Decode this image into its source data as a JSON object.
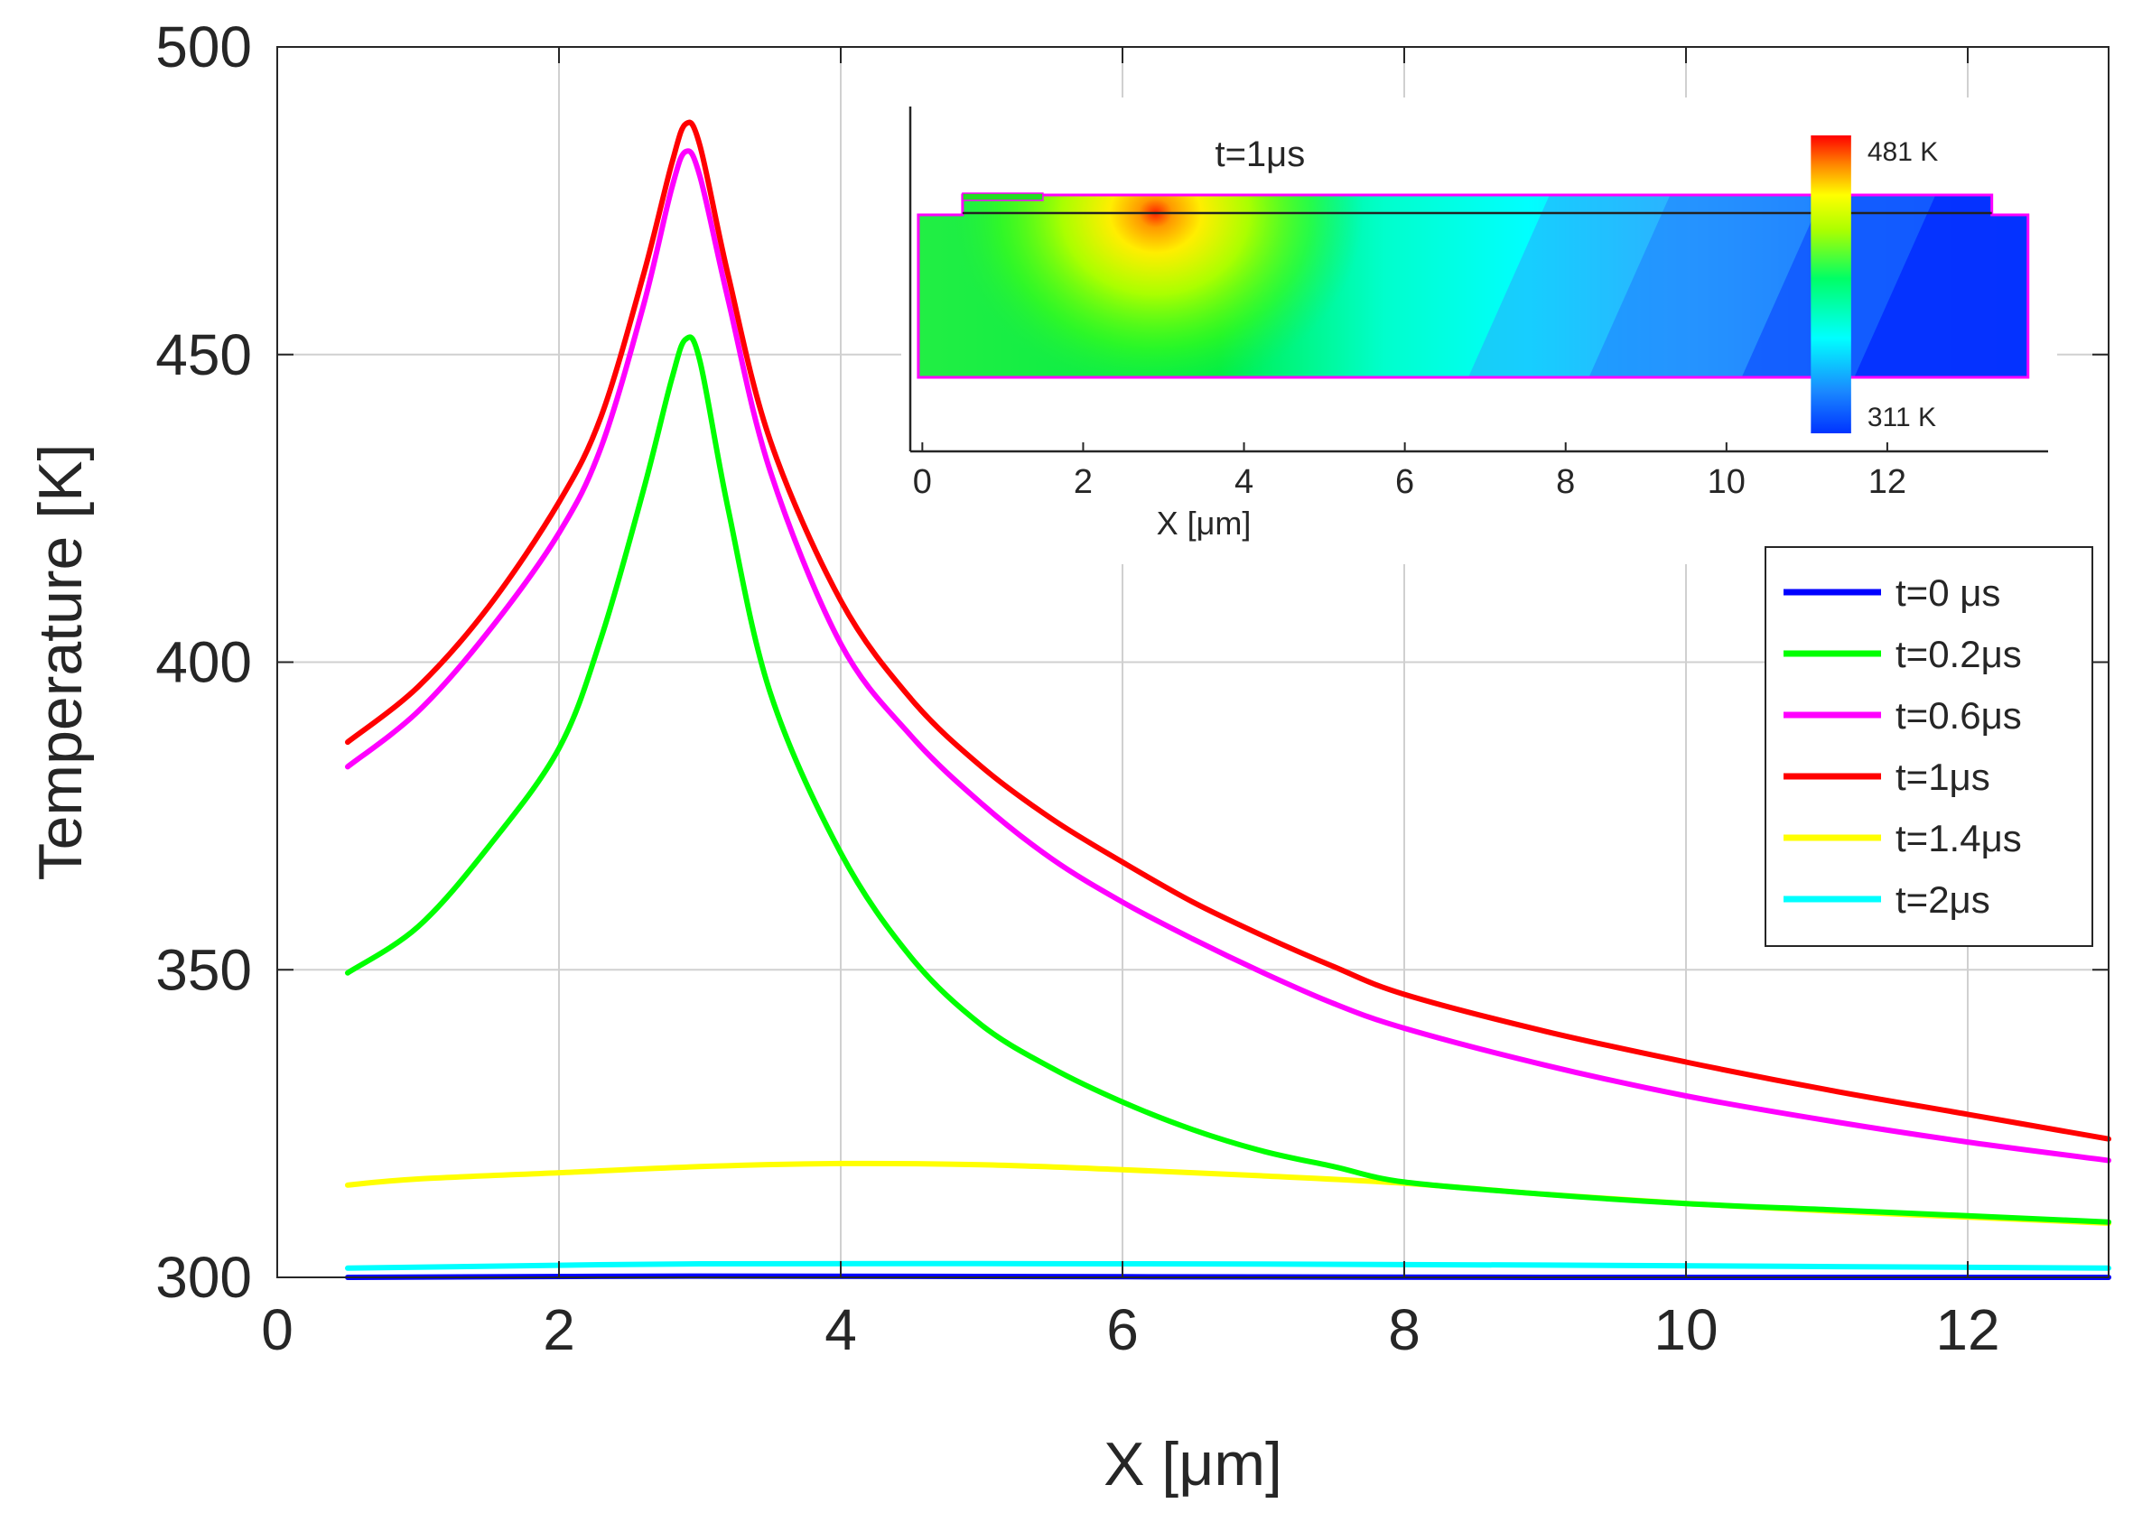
{
  "colors": {
    "t0": "#0000ff",
    "t02": "#00ff00",
    "t06": "#ff00ff",
    "t1": "#ff0000",
    "t14": "#ffff00",
    "t2": "#00ffff",
    "grid": "#d0d0d0",
    "axis": "#262626"
  },
  "chart_data": [
    {
      "type": "line",
      "xlabel": "X [μm]",
      "ylabel": "Temperature [K]",
      "xlim": [
        0,
        13
      ],
      "ylim": [
        300,
        500
      ],
      "xticks": [
        0,
        2,
        4,
        6,
        8,
        10,
        12
      ],
      "yticks": [
        300,
        350,
        400,
        450,
        500
      ],
      "xtick_labels": [
        "0",
        "2",
        "4",
        "6",
        "8",
        "10",
        "12"
      ],
      "ytick_labels": [
        "300",
        "350",
        "400",
        "450",
        "500"
      ],
      "grid": true,
      "legend_position": "right",
      "series": [
        {
          "name": "t=0 μs",
          "color_key": "t0",
          "points": [
            [
              0.5,
              300
            ],
            [
              3,
              300.2
            ],
            [
              6,
              300.1
            ],
            [
              9,
              300
            ],
            [
              13,
              300
            ]
          ]
        },
        {
          "name": "t=0.2μs",
          "color_key": "t02",
          "points": [
            [
              0.5,
              349.5
            ],
            [
              1.0,
              357
            ],
            [
              1.5,
              370
            ],
            [
              2.0,
              386
            ],
            [
              2.3,
              404
            ],
            [
              2.6,
              428
            ],
            [
              2.8,
              446
            ],
            [
              2.9,
              452.5
            ],
            [
              3.0,
              449
            ],
            [
              3.2,
              425
            ],
            [
              3.5,
              395
            ],
            [
              4.0,
              369
            ],
            [
              4.5,
              352
            ],
            [
              5.0,
              341
            ],
            [
              5.5,
              334
            ],
            [
              6.0,
              328.5
            ],
            [
              6.5,
              324
            ],
            [
              7.0,
              320.5
            ],
            [
              7.5,
              318
            ],
            [
              8.0,
              315.5
            ],
            [
              9.0,
              313.5
            ],
            [
              10.0,
              312
            ],
            [
              11.0,
              311
            ],
            [
              12.0,
              310
            ],
            [
              13.0,
              309
            ]
          ]
        },
        {
          "name": "t=0.6μs",
          "color_key": "t06",
          "points": [
            [
              0.5,
              383
            ],
            [
              1.0,
              392
            ],
            [
              1.5,
              405
            ],
            [
              2.0,
              421
            ],
            [
              2.3,
              435
            ],
            [
              2.6,
              458
            ],
            [
              2.8,
              477
            ],
            [
              2.9,
              483
            ],
            [
              3.0,
              479
            ],
            [
              3.2,
              459
            ],
            [
              3.5,
              431
            ],
            [
              4.0,
              403
            ],
            [
              4.5,
              388
            ],
            [
              5.0,
              377
            ],
            [
              5.5,
              368
            ],
            [
              6.0,
              361
            ],
            [
              6.5,
              355
            ],
            [
              7.0,
              349.5
            ],
            [
              7.5,
              344.5
            ],
            [
              8.0,
              340.5
            ],
            [
              9.0,
              334.5
            ],
            [
              10.0,
              329.5
            ],
            [
              11.0,
              325.5
            ],
            [
              12.0,
              322
            ],
            [
              13.0,
              319
            ]
          ]
        },
        {
          "name": "t=1μs",
          "color_key": "t1",
          "points": [
            [
              0.5,
              387
            ],
            [
              1.0,
              396
            ],
            [
              1.5,
              409
            ],
            [
              2.0,
              426
            ],
            [
              2.3,
              440
            ],
            [
              2.6,
              463
            ],
            [
              2.8,
              481
            ],
            [
              2.9,
              487.5
            ],
            [
              3.0,
              484
            ],
            [
              3.2,
              463
            ],
            [
              3.5,
              436
            ],
            [
              4.0,
              410
            ],
            [
              4.5,
              394
            ],
            [
              5.0,
              383
            ],
            [
              5.5,
              374.5
            ],
            [
              6.0,
              367.5
            ],
            [
              6.5,
              361
            ],
            [
              7.0,
              355.5
            ],
            [
              7.5,
              350.5
            ],
            [
              8.0,
              346
            ],
            [
              9.0,
              340
            ],
            [
              10.0,
              335
            ],
            [
              11.0,
              330.5
            ],
            [
              12.0,
              326.5
            ],
            [
              13.0,
              322.5
            ]
          ]
        },
        {
          "name": "t=1.4μs",
          "color_key": "t14",
          "points": [
            [
              0.5,
              315
            ],
            [
              1.0,
              316
            ],
            [
              2.0,
              317
            ],
            [
              3.0,
              318
            ],
            [
              4.0,
              318.5
            ],
            [
              5.0,
              318.3
            ],
            [
              6.0,
              317.5
            ],
            [
              7.0,
              316.5
            ],
            [
              8.0,
              315.3
            ],
            [
              9.0,
              313.5
            ],
            [
              10.0,
              312
            ],
            [
              11.0,
              310.8
            ],
            [
              12.0,
              309.8
            ],
            [
              13.0,
              308.8
            ]
          ]
        },
        {
          "name": "t=2μs",
          "color_key": "t2",
          "points": [
            [
              0.5,
              301.5
            ],
            [
              3,
              302.2
            ],
            [
              6,
              302.2
            ],
            [
              9,
              302
            ],
            [
              13,
              301.5
            ]
          ]
        }
      ]
    },
    {
      "type": "heatmap",
      "title": "t=1μs",
      "xlabel": "X [μm]",
      "xlim": [
        -0.15,
        14
      ],
      "xticks": [
        0,
        2,
        4,
        6,
        8,
        10,
        12
      ],
      "xtick_labels": [
        "0",
        "2",
        "4",
        "6",
        "8",
        "10",
        "12"
      ],
      "hotspot_x": 2.9,
      "colorbar": {
        "max_label": "481 K",
        "min_label": "311 K",
        "max_value": 481,
        "min_value": 311
      }
    }
  ]
}
